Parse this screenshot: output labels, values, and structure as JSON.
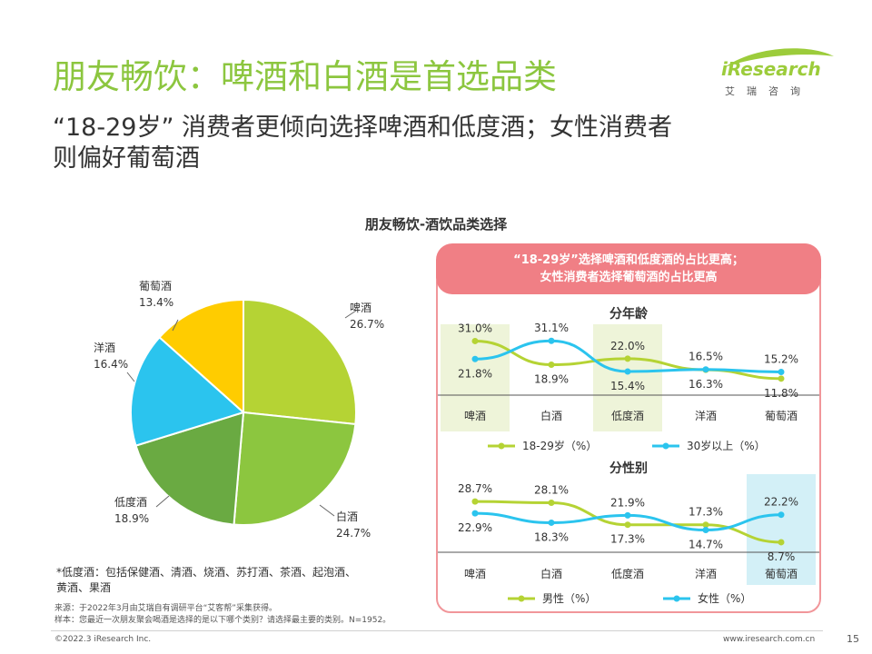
{
  "header": {
    "title": "朋友畅饮：啤酒和白酒是首选品类",
    "subtitle_line1": "“18-29岁” 消费者更倾向选择啤酒和低度酒；女性消费者",
    "subtitle_line2": "则偏好葡萄酒"
  },
  "logo": {
    "brand": "iResearch",
    "cn": "艾瑞咨询"
  },
  "colors": {
    "accent": "#8cc63f",
    "beer": "#b5d334",
    "baijiu": "#8cc63f",
    "low": "#6aaa42",
    "yang": "#2bc4ee",
    "wine": "#ffcc00",
    "panel": "#f07f85",
    "highlight_green": "#eef4d9",
    "highlight_blue": "#d3f0f7"
  },
  "chart_data": [
    {
      "type": "pie",
      "title": "朋友畅饮-酒饮品类选择",
      "slices": [
        {
          "name": "啤酒",
          "value": 26.7,
          "label": "26.7%"
        },
        {
          "name": "白酒",
          "value": 24.7,
          "label": "24.7%"
        },
        {
          "name": "低度酒",
          "value": 18.9,
          "label": "18.9%"
        },
        {
          "name": "洋酒",
          "value": 16.4,
          "label": "16.4%"
        },
        {
          "name": "葡萄酒",
          "value": 13.4,
          "label": "13.4%"
        }
      ]
    },
    {
      "type": "line",
      "title": "分年龄",
      "categories": [
        "啤酒",
        "白酒",
        "低度酒",
        "洋酒",
        "葡萄酒"
      ],
      "series": [
        {
          "name": "18-29岁（%）",
          "values": [
            31.0,
            18.9,
            22.0,
            16.3,
            11.8
          ],
          "labels": [
            "31.0%",
            "18.9%",
            "22.0%",
            "16.3%",
            "11.8%"
          ]
        },
        {
          "name": "30岁以上（%）",
          "values": [
            21.8,
            31.1,
            15.4,
            16.5,
            15.2
          ],
          "labels": [
            "21.8%",
            "31.1%",
            "15.4%",
            "16.5%",
            "15.2%"
          ]
        }
      ],
      "ylim": [
        8,
        34
      ]
    },
    {
      "type": "line",
      "title": "分性别",
      "categories": [
        "啤酒",
        "白酒",
        "低度酒",
        "洋酒",
        "葡萄酒"
      ],
      "series": [
        {
          "name": "男性（%）",
          "values": [
            28.7,
            28.1,
            17.3,
            17.3,
            8.7
          ],
          "labels": [
            "28.7%",
            "28.1%",
            "17.3%",
            "17.3%",
            "8.7%"
          ]
        },
        {
          "name": "女性（%）",
          "values": [
            22.9,
            18.3,
            21.9,
            14.7,
            22.2
          ],
          "labels": [
            "22.9%",
            "18.3%",
            "21.9%",
            "14.7%",
            "22.2%"
          ]
        }
      ],
      "ylim": [
        6,
        31
      ]
    }
  ],
  "panel": {
    "line1": "“18-29岁”选择啤酒和低度酒的占比更高；",
    "line2": "女性消费者选择葡萄酒的占比更高"
  },
  "footnote": "*低度酒：包括保健酒、清酒、烧酒、苏打酒、茶酒、起泡酒、黄酒、果酒",
  "footer": {
    "source": "来源：于2022年3月由艾瑞自有调研平台“艾客帮”采集获得。",
    "sample": "样本：您最近一次朋友聚会喝酒是选择的是以下哪个类别？请选择最主要的类别。N=1952。",
    "copyright": "©2022.3 iResearch Inc.",
    "website": "www.iresearch.com.cn",
    "page": "15"
  }
}
